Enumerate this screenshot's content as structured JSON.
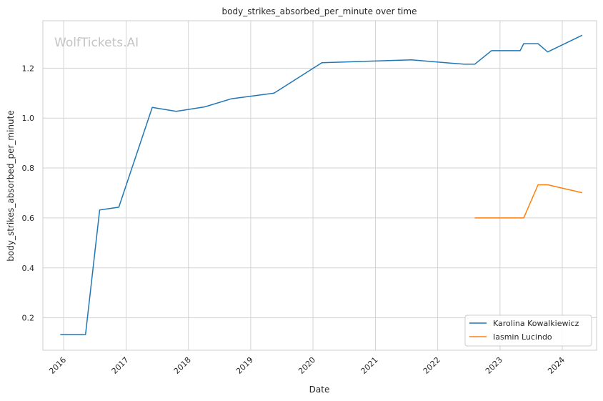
{
  "chart_data": {
    "type": "line",
    "title": "body_strikes_absorbed_per_minute over time",
    "xlabel": "Date",
    "ylabel": "body_strikes_absorbed_per_minute",
    "watermark": "WolfTickets.AI",
    "xlim": [
      "2015-09-01",
      "2024-07-20"
    ],
    "ylim": [
      0.07,
      1.39
    ],
    "x_ticks": [
      "2016-01-01",
      "2017-01-01",
      "2018-01-01",
      "2019-01-01",
      "2020-01-01",
      "2021-01-01",
      "2022-01-01",
      "2023-01-01",
      "2024-01-01"
    ],
    "x_tick_labels": [
      "2016",
      "2017",
      "2018",
      "2019",
      "2020",
      "2021",
      "2022",
      "2023",
      "2024"
    ],
    "y_ticks": [
      0.2,
      0.4,
      0.6,
      0.8,
      1.0,
      1.2
    ],
    "y_tick_labels": [
      "0.2",
      "0.4",
      "0.6",
      "0.8",
      "1.0",
      "1.2"
    ],
    "grid": true,
    "legend_position": "bottom-right",
    "series": [
      {
        "name": "Karolina Kowalkiewicz",
        "color": "#1f77b4",
        "x": [
          "2015-12-12",
          "2016-05-08",
          "2016-07-30",
          "2016-11-19",
          "2017-06-03",
          "2017-10-21",
          "2018-04-07",
          "2018-09-08",
          "2019-05-18",
          "2020-02-22",
          "2021-07-31",
          "2022-06-04",
          "2022-08-06",
          "2022-11-12",
          "2023-04-29",
          "2023-05-20",
          "2023-08-12",
          "2023-10-07",
          "2024-04-27"
        ],
        "y": [
          0.133,
          0.133,
          0.632,
          0.643,
          1.043,
          1.027,
          1.045,
          1.077,
          1.1,
          1.222,
          1.233,
          1.216,
          1.216,
          1.27,
          1.27,
          1.298,
          1.298,
          1.265,
          1.332
        ]
      },
      {
        "name": "Iasmin Lucindo",
        "color": "#ff7f0e",
        "x": [
          "2022-08-06",
          "2023-05-20",
          "2023-08-12",
          "2023-10-07",
          "2024-04-27"
        ],
        "y": [
          0.6,
          0.6,
          0.733,
          0.733,
          0.701
        ]
      }
    ]
  }
}
